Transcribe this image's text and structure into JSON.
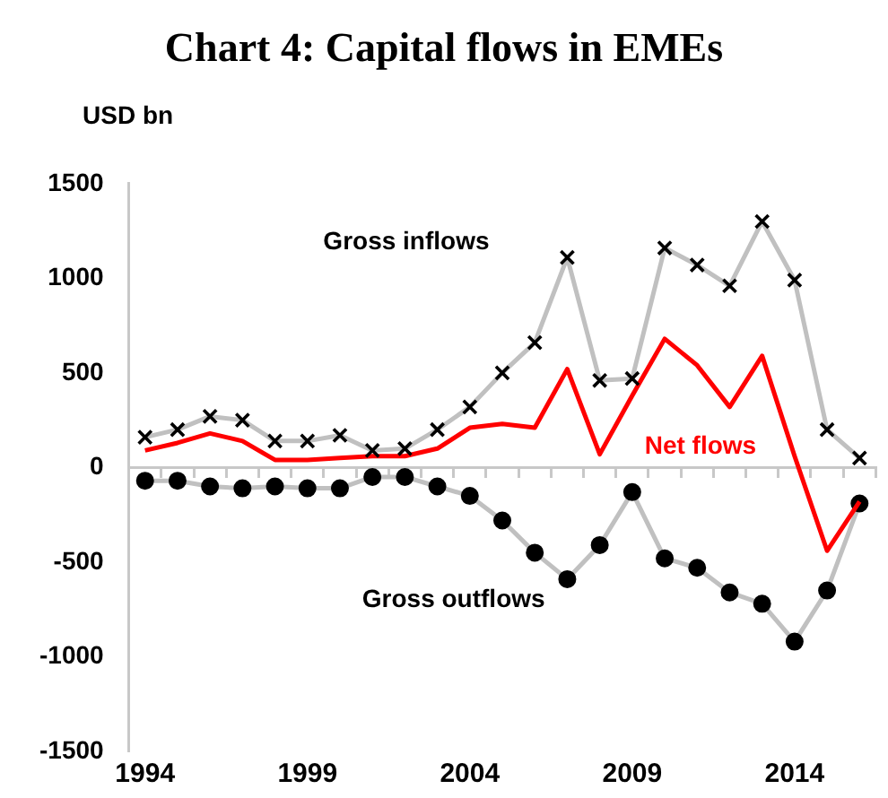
{
  "chart_data": {
    "type": "line",
    "title": "Chart 4: Capital flows in EMEs",
    "ylabel": "USD bn",
    "categories": [
      "1994",
      null,
      null,
      null,
      null,
      "1999",
      null,
      null,
      null,
      null,
      "2004",
      null,
      null,
      null,
      null,
      "2009",
      null,
      null,
      null,
      null,
      "2014",
      null,
      null
    ],
    "series": [
      {
        "name": "Gross inflows",
        "color": "#c0c0c0",
        "marker": "cross",
        "values": [
          160,
          200,
          270,
          250,
          140,
          140,
          170,
          90,
          100,
          200,
          320,
          500,
          660,
          1110,
          460,
          470,
          1160,
          1070,
          960,
          1300,
          990,
          200,
          50
        ]
      },
      {
        "name": "Net flows",
        "color": "#ff0000",
        "marker": "none",
        "values": [
          90,
          130,
          180,
          140,
          40,
          40,
          50,
          60,
          60,
          100,
          210,
          230,
          210,
          520,
          70,
          380,
          680,
          540,
          320,
          590,
          60,
          -440,
          -180
        ]
      },
      {
        "name": "Gross outflows",
        "color": "#c0c0c0",
        "marker": "circle",
        "values": [
          -70,
          -70,
          -100,
          -110,
          -100,
          -110,
          -110,
          -50,
          -50,
          -100,
          -150,
          -280,
          -450,
          -590,
          -410,
          -130,
          -480,
          -530,
          -660,
          -720,
          -920,
          -650,
          -190
        ]
      }
    ],
    "ylim": [
      -1500,
      1500
    ],
    "yticks": [
      -1500,
      -1000,
      -500,
      0,
      500,
      1000,
      1500
    ],
    "legend": false
  }
}
